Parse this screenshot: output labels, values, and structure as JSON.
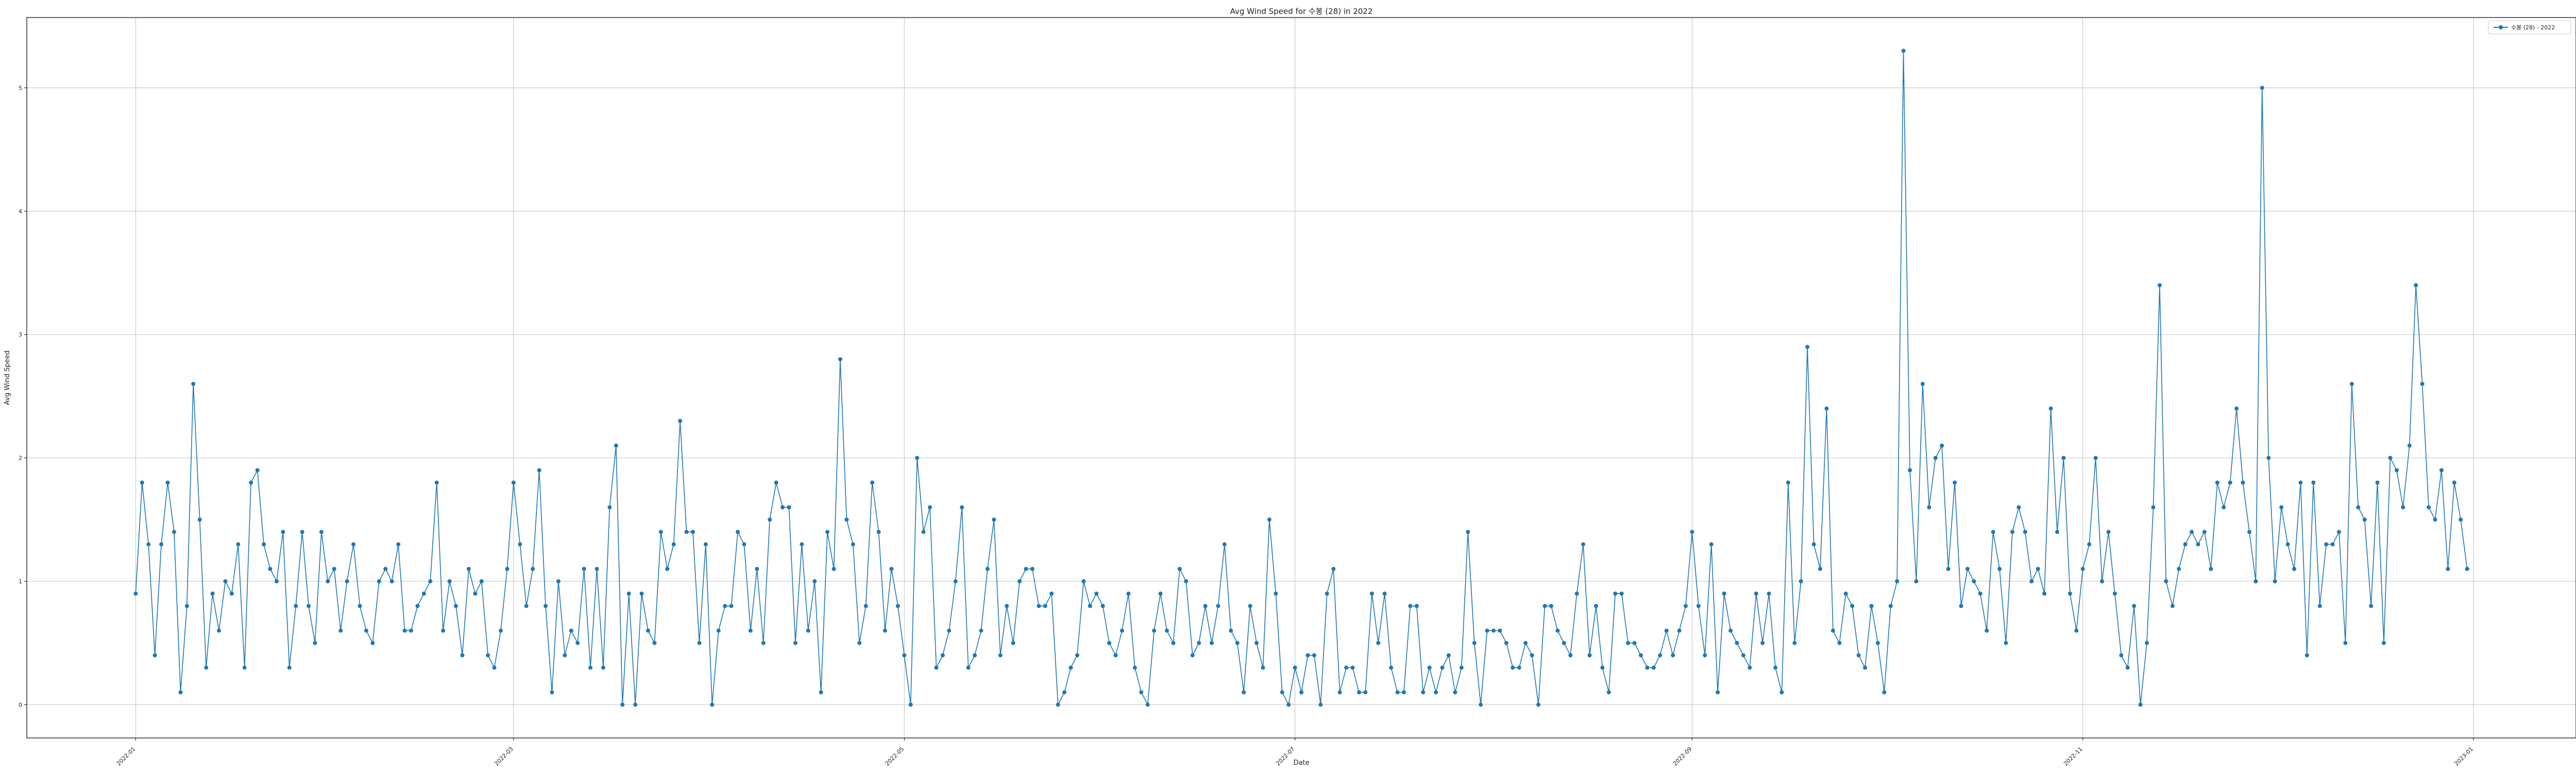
{
  "chart_data": {
    "type": "line",
    "title": "Avg Wind Speed for 수봉 (28) in 2022",
    "xlabel": "Date",
    "ylabel": "Avg Wind Speed",
    "x_ticks": [
      "2022-01",
      "2022-03",
      "2022-05",
      "2022-07",
      "2022-09",
      "2022-11",
      "2023-01"
    ],
    "y_ticks": [
      "0",
      "1",
      "2",
      "3",
      "4",
      "5"
    ],
    "xlim": [
      "2021-12-15",
      "2023-01-17"
    ],
    "ylim": [
      -0.27,
      5.57
    ],
    "grid": true,
    "legend_placement": "top-right",
    "color": "#1f77b4",
    "series": [
      {
        "name": "수봉 (28) - 2022",
        "start_date": "2022-01-01",
        "values": [
          0.9,
          1.8,
          1.3,
          0.4,
          1.3,
          1.8,
          1.4,
          0.1,
          0.8,
          2.6,
          1.5,
          0.3,
          0.9,
          0.6,
          1.0,
          0.9,
          1.3,
          0.3,
          1.8,
          1.9,
          1.3,
          1.1,
          1.0,
          1.4,
          0.3,
          0.8,
          1.4,
          0.8,
          0.5,
          1.4,
          1.0,
          1.1,
          0.6,
          1.0,
          1.3,
          0.8,
          0.6,
          0.5,
          1.0,
          1.1,
          1.0,
          1.3,
          0.6,
          0.6,
          0.8,
          0.9,
          1.0,
          1.8,
          0.6,
          1.0,
          0.8,
          0.4,
          1.1,
          0.9,
          1.0,
          0.4,
          0.3,
          0.6,
          1.1,
          1.8,
          1.3,
          0.8,
          1.1,
          1.9,
          0.8,
          0.1,
          1.0,
          0.4,
          0.6,
          0.5,
          1.1,
          0.3,
          1.1,
          0.3,
          1.6,
          2.1,
          0.0,
          0.9,
          0.0,
          0.9,
          0.6,
          0.5,
          1.4,
          1.1,
          1.3,
          2.3,
          1.4,
          1.4,
          0.5,
          1.3,
          0.0,
          0.6,
          0.8,
          0.8,
          1.4,
          1.3,
          0.6,
          1.1,
          0.5,
          1.5,
          1.8,
          1.6,
          1.6,
          0.5,
          1.3,
          0.6,
          1.0,
          0.1,
          1.4,
          1.1,
          2.8,
          1.5,
          1.3,
          0.5,
          0.8,
          1.8,
          1.4,
          0.6,
          1.1,
          0.8,
          0.4,
          0.0,
          2.0,
          1.4,
          1.6,
          0.3,
          0.4,
          0.6,
          1.0,
          1.6,
          0.3,
          0.4,
          0.6,
          1.1,
          1.5,
          0.4,
          0.8,
          0.5,
          1.0,
          1.1,
          1.1,
          0.8,
          0.8,
          0.9,
          0.0,
          0.1,
          0.3,
          0.4,
          1.0,
          0.8,
          0.9,
          0.8,
          0.5,
          0.4,
          0.6,
          0.9,
          0.3,
          0.1,
          0.0,
          0.6,
          0.9,
          0.6,
          0.5,
          1.1,
          1.0,
          0.4,
          0.5,
          0.8,
          0.5,
          0.8,
          1.3,
          0.6,
          0.5,
          0.1,
          0.8,
          0.5,
          0.3,
          1.5,
          0.9,
          0.1,
          0.0,
          0.3,
          0.1,
          0.4,
          0.4,
          0.0,
          0.9,
          1.1,
          0.1,
          0.3,
          0.3,
          0.1,
          0.1,
          0.9,
          0.5,
          0.9,
          0.3,
          0.1,
          0.1,
          0.8,
          0.8,
          0.1,
          0.3,
          0.1,
          0.3,
          0.4,
          0.1,
          0.3,
          1.4,
          0.5,
          0.0,
          0.6,
          0.6,
          0.6,
          0.5,
          0.3,
          0.3,
          0.5,
          0.4,
          0.0,
          0.8,
          0.8,
          0.6,
          0.5,
          0.4,
          0.9,
          1.3,
          0.4,
          0.8,
          0.3,
          0.1,
          0.9,
          0.9,
          0.5,
          0.5,
          0.4,
          0.3,
          0.3,
          0.4,
          0.6,
          0.4,
          0.6,
          0.8,
          1.4,
          0.8,
          0.4,
          1.3,
          0.1,
          0.9,
          0.6,
          0.5,
          0.4,
          0.3,
          0.9,
          0.5,
          0.9,
          0.3,
          0.1,
          1.8,
          0.5,
          1.0,
          2.9,
          1.3,
          1.1,
          2.4,
          0.6,
          0.5,
          0.9,
          0.8,
          0.4,
          0.3,
          0.8,
          0.5,
          0.1,
          0.8,
          1.0,
          5.3,
          1.9,
          1.0,
          2.6,
          1.6,
          2.0,
          2.1,
          1.1,
          1.8,
          0.8,
          1.1,
          1.0,
          0.9,
          0.6,
          1.4,
          1.1,
          0.5,
          1.4,
          1.6,
          1.4,
          1.0,
          1.1,
          0.9,
          2.4,
          1.4,
          2.0,
          0.9,
          0.6,
          1.1,
          1.3,
          2.0,
          1.0,
          1.4,
          0.9,
          0.4,
          0.3,
          0.8,
          0.0,
          0.5,
          1.6,
          3.4,
          1.0,
          0.8,
          1.1,
          1.3,
          1.4,
          1.3,
          1.4,
          1.1,
          1.8,
          1.6,
          1.8,
          2.4,
          1.8,
          1.4,
          1.0,
          5.0,
          2.0,
          1.0,
          1.6,
          1.3,
          1.1,
          1.8,
          0.4,
          1.8,
          0.8,
          1.3,
          1.3,
          1.4,
          0.5,
          2.6,
          1.6,
          1.5,
          0.8,
          1.8,
          0.5,
          2.0,
          1.9,
          1.6,
          2.1,
          3.4,
          2.6,
          1.6,
          1.5,
          1.9,
          1.1,
          1.8,
          1.5,
          1.1
        ]
      }
    ]
  }
}
